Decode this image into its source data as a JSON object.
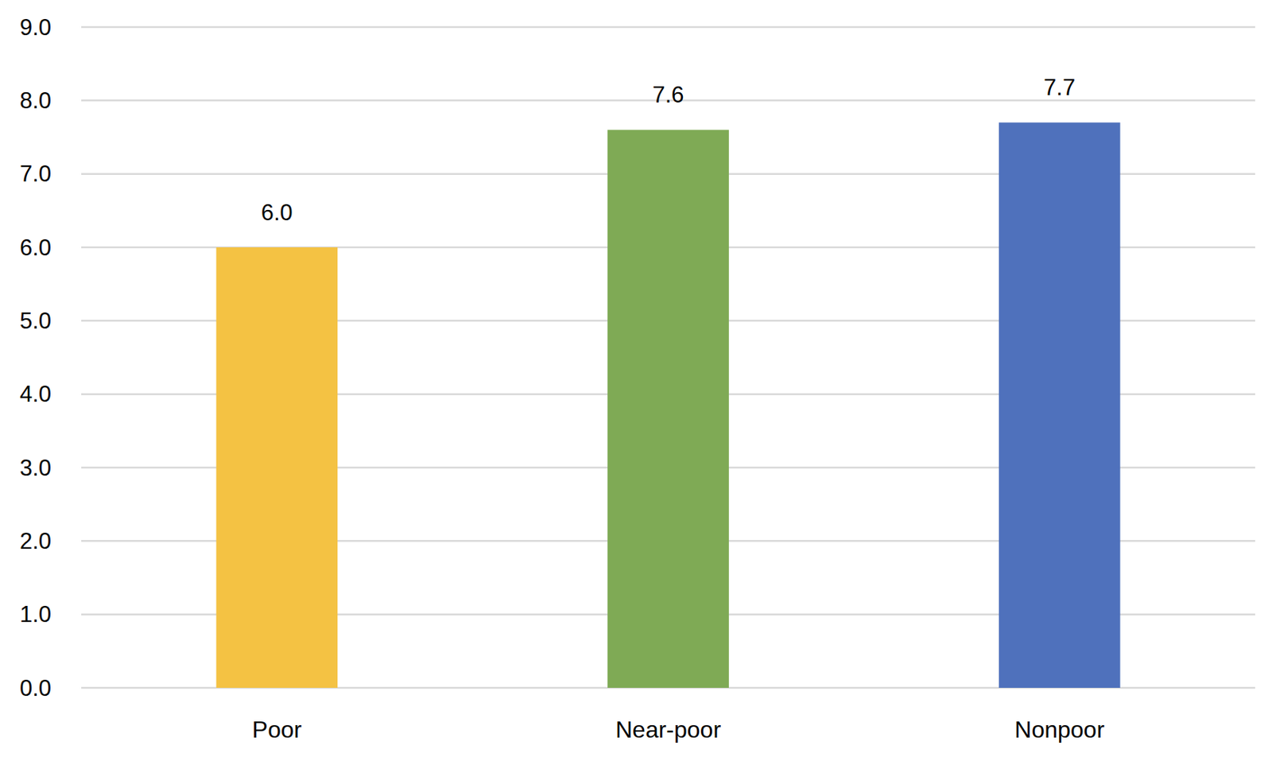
{
  "chart_data": {
    "type": "bar",
    "categories": [
      "Poor",
      "Near-poor",
      "Nonpoor"
    ],
    "values": [
      6.0,
      7.6,
      7.7
    ],
    "value_labels": [
      "6.0",
      "7.6",
      "7.7"
    ],
    "colors": [
      "#f4c243",
      "#7faa55",
      "#4f71bc"
    ],
    "ylim": [
      0,
      9
    ],
    "yticks": [
      {
        "value": 0,
        "label": "0.0"
      },
      {
        "value": 1,
        "label": "1.0"
      },
      {
        "value": 2,
        "label": "2.0"
      },
      {
        "value": 3,
        "label": "3.0"
      },
      {
        "value": 4,
        "label": "4.0"
      },
      {
        "value": 5,
        "label": "5.0"
      },
      {
        "value": 6,
        "label": "6.0"
      },
      {
        "value": 7,
        "label": "7.0"
      },
      {
        "value": 8,
        "label": "8.0"
      },
      {
        "value": 9,
        "label": "9.0"
      }
    ],
    "grid": true,
    "data_labels": true
  }
}
